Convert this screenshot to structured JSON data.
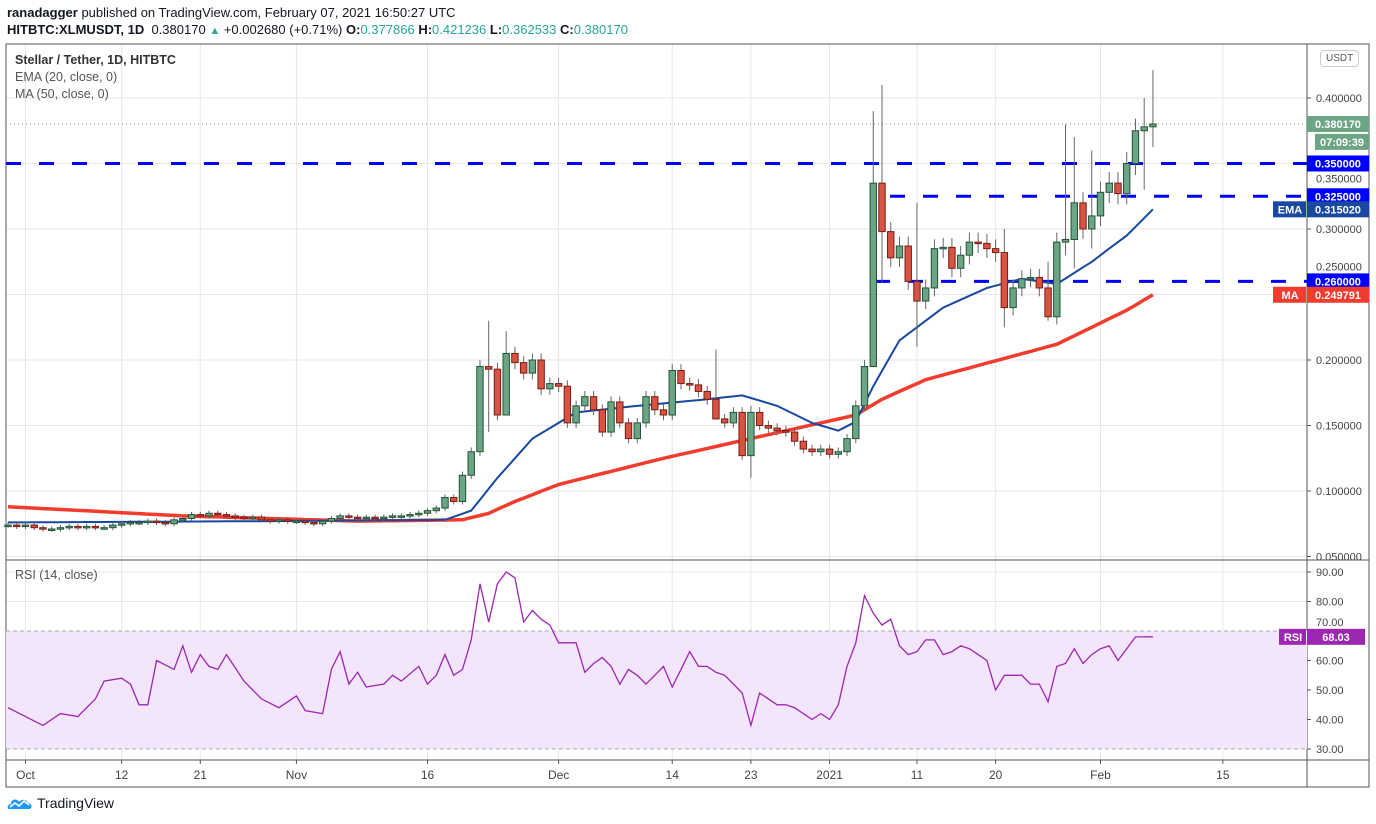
{
  "header": {
    "author": "ranadagger",
    "published_text": "published on TradingView.com, February 07, 2021 16:50:27 UTC",
    "symbol": "HITBTC:XLMUSDT, 1D",
    "last": "0.380170",
    "change": "+0.002680 (+0.71%)",
    "o_label": "O:",
    "o": "0.377866",
    "h_label": "H:",
    "h": "0.421236",
    "l_label": "L:",
    "l": "0.362533",
    "c_label": "C:",
    "c": "0.380170"
  },
  "legend": {
    "title": "Stellar / Tether, 1D, HITBTC",
    "ema": "EMA (20, close, 0)",
    "ma": "MA (50, close, 0)",
    "rsi": "RSI (14, close)"
  },
  "currency_button": "USDT",
  "footer": {
    "brand": "TradingView"
  },
  "colors": {
    "up": "#6ba583",
    "down": "#d75442",
    "ema": "#1848a0",
    "ma": "#f23c2e",
    "rsi": "#9c27b0",
    "levels": "#0000ff",
    "rsi_band": "#f3e5fc"
  },
  "chart_data": {
    "type": "candlestick",
    "start_date": "2020-09-29",
    "close": [
      0.074,
      0.073,
      0.074,
      0.072,
      0.071,
      0.071,
      0.072,
      0.073,
      0.072,
      0.073,
      0.072,
      0.072,
      0.074,
      0.075,
      0.076,
      0.076,
      0.077,
      0.076,
      0.075,
      0.078,
      0.079,
      0.082,
      0.081,
      0.083,
      0.082,
      0.081,
      0.08,
      0.079,
      0.08,
      0.078,
      0.077,
      0.078,
      0.077,
      0.077,
      0.076,
      0.075,
      0.077,
      0.079,
      0.081,
      0.08,
      0.079,
      0.08,
      0.079,
      0.08,
      0.081,
      0.081,
      0.082,
      0.083,
      0.085,
      0.087,
      0.095,
      0.092,
      0.112,
      0.13,
      0.195,
      0.193,
      0.158,
      0.205,
      0.198,
      0.19,
      0.2,
      0.178,
      0.182,
      0.18,
      0.152,
      0.165,
      0.172,
      0.162,
      0.145,
      0.168,
      0.152,
      0.14,
      0.152,
      0.172,
      0.162,
      0.158,
      0.192,
      0.182,
      0.181,
      0.176,
      0.17,
      0.155,
      0.152,
      0.16,
      0.127,
      0.16,
      0.15,
      0.148,
      0.146,
      0.145,
      0.138,
      0.132,
      0.13,
      0.132,
      0.128,
      0.13,
      0.14,
      0.165,
      0.195,
      0.335,
      0.298,
      0.278,
      0.287,
      0.26,
      0.245,
      0.255,
      0.285,
      0.286,
      0.27,
      0.28,
      0.29,
      0.289,
      0.285,
      0.282,
      0.24,
      0.255,
      0.262,
      0.263,
      0.255,
      0.233,
      0.29,
      0.292,
      0.32,
      0.3,
      0.31,
      0.328,
      0.335,
      0.327,
      0.35,
      0.375,
      0.378,
      0.38017
    ],
    "wicks": [
      [
        55,
        0.23,
        0.145
      ],
      [
        57,
        0.222,
        0.172
      ],
      [
        81,
        0.208,
        0.16
      ],
      [
        85,
        0.165,
        0.11
      ],
      [
        99,
        0.39,
        0.196
      ],
      [
        100,
        0.41,
        0.26
      ],
      [
        104,
        0.32,
        0.21
      ],
      [
        114,
        0.3,
        0.225
      ],
      [
        119,
        0.275,
        0.23
      ],
      [
        121,
        0.38,
        0.28
      ],
      [
        122,
        0.37,
        0.27
      ],
      [
        124,
        0.36,
        0.285
      ],
      [
        130,
        0.4,
        0.33
      ],
      [
        131,
        0.421236,
        0.362533
      ]
    ],
    "ema20": [
      [
        0,
        0.076
      ],
      [
        30,
        0.077
      ],
      [
        50,
        0.078
      ],
      [
        53,
        0.085
      ],
      [
        56,
        0.11
      ],
      [
        60,
        0.14
      ],
      [
        65,
        0.16
      ],
      [
        72,
        0.165
      ],
      [
        80,
        0.17
      ],
      [
        84,
        0.173
      ],
      [
        88,
        0.165
      ],
      [
        92,
        0.152
      ],
      [
        95,
        0.146
      ],
      [
        97,
        0.153
      ],
      [
        99,
        0.18
      ],
      [
        102,
        0.215
      ],
      [
        107,
        0.24
      ],
      [
        112,
        0.255
      ],
      [
        116,
        0.262
      ],
      [
        120,
        0.258
      ],
      [
        124,
        0.275
      ],
      [
        128,
        0.295
      ],
      [
        131,
        0.31502
      ]
    ],
    "ma50": [
      [
        0,
        0.088
      ],
      [
        20,
        0.081
      ],
      [
        40,
        0.077
      ],
      [
        52,
        0.078
      ],
      [
        55,
        0.083
      ],
      [
        58,
        0.092
      ],
      [
        63,
        0.105
      ],
      [
        75,
        0.125
      ],
      [
        85,
        0.14
      ],
      [
        93,
        0.152
      ],
      [
        97,
        0.158
      ],
      [
        100,
        0.17
      ],
      [
        105,
        0.185
      ],
      [
        115,
        0.203
      ],
      [
        120,
        0.212
      ],
      [
        124,
        0.225
      ],
      [
        128,
        0.238
      ],
      [
        131,
        0.249791
      ]
    ],
    "rsi": [
      [
        0,
        44
      ],
      [
        4,
        38
      ],
      [
        6,
        42
      ],
      [
        8,
        41
      ],
      [
        10,
        47
      ],
      [
        11,
        53
      ],
      [
        13,
        54
      ],
      [
        14,
        52
      ],
      [
        15,
        45
      ],
      [
        16,
        45
      ],
      [
        17,
        60
      ],
      [
        19,
        57
      ],
      [
        20,
        65
      ],
      [
        21,
        56
      ],
      [
        22,
        62
      ],
      [
        23,
        58
      ],
      [
        24,
        57
      ],
      [
        25,
        62
      ],
      [
        27,
        53
      ],
      [
        29,
        47
      ],
      [
        31,
        44
      ],
      [
        33,
        48
      ],
      [
        34,
        43
      ],
      [
        36,
        42
      ],
      [
        37,
        57
      ],
      [
        38,
        63
      ],
      [
        39,
        52
      ],
      [
        40,
        56
      ],
      [
        41,
        51
      ],
      [
        43,
        52
      ],
      [
        44,
        55
      ],
      [
        45,
        53
      ],
      [
        47,
        58
      ],
      [
        48,
        52
      ],
      [
        49,
        55
      ],
      [
        50,
        62
      ],
      [
        51,
        55
      ],
      [
        52,
        57
      ],
      [
        53,
        67
      ],
      [
        54,
        86
      ],
      [
        55,
        73
      ],
      [
        56,
        86
      ],
      [
        57,
        90
      ],
      [
        58,
        88
      ],
      [
        59,
        73
      ],
      [
        60,
        77
      ],
      [
        61,
        74
      ],
      [
        62,
        72
      ],
      [
        63,
        66
      ],
      [
        64,
        66
      ],
      [
        65,
        66
      ],
      [
        66,
        56
      ],
      [
        67,
        59
      ],
      [
        68,
        61
      ],
      [
        69,
        58
      ],
      [
        70,
        52
      ],
      [
        71,
        57
      ],
      [
        72,
        55
      ],
      [
        73,
        52
      ],
      [
        74,
        55
      ],
      [
        75,
        58
      ],
      [
        76,
        51
      ],
      [
        77,
        57
      ],
      [
        78,
        63
      ],
      [
        79,
        58
      ],
      [
        80,
        58
      ],
      [
        81,
        56
      ],
      [
        82,
        55
      ],
      [
        83,
        52
      ],
      [
        84,
        49
      ],
      [
        85,
        38
      ],
      [
        86,
        49
      ],
      [
        87,
        47
      ],
      [
        88,
        45
      ],
      [
        89,
        45
      ],
      [
        90,
        44
      ],
      [
        91,
        42
      ],
      [
        92,
        40
      ],
      [
        93,
        42
      ],
      [
        94,
        40
      ],
      [
        95,
        45
      ],
      [
        96,
        58
      ],
      [
        97,
        66
      ],
      [
        98,
        82
      ],
      [
        99,
        76
      ],
      [
        100,
        72
      ],
      [
        101,
        74
      ],
      [
        102,
        65
      ],
      [
        103,
        62
      ],
      [
        104,
        63
      ],
      [
        105,
        67
      ],
      [
        106,
        67
      ],
      [
        107,
        62
      ],
      [
        108,
        63
      ],
      [
        109,
        65
      ],
      [
        110,
        64
      ],
      [
        111,
        62
      ],
      [
        112,
        60
      ],
      [
        113,
        50
      ],
      [
        114,
        55
      ],
      [
        115,
        55
      ],
      [
        116,
        55
      ],
      [
        117,
        52
      ],
      [
        118,
        52
      ],
      [
        119,
        46
      ],
      [
        120,
        58
      ],
      [
        121,
        59
      ],
      [
        122,
        64
      ],
      [
        123,
        59
      ],
      [
        124,
        62
      ],
      [
        125,
        64
      ],
      [
        126,
        65
      ],
      [
        127,
        60
      ],
      [
        128,
        64
      ],
      [
        129,
        68
      ],
      [
        130,
        68
      ],
      [
        131,
        68.03
      ]
    ],
    "levels": [
      0.35,
      0.325,
      0.26
    ],
    "y_ticks": [
      "0.400000",
      "0.350000",
      "0.300000",
      "0.250000",
      "0.200000",
      "0.150000",
      "0.100000",
      "0.050000"
    ],
    "y_tick_values": [
      0.4,
      0.35,
      0.3,
      0.25,
      0.2,
      0.15,
      0.1,
      0.05
    ],
    "ylim": [
      0.043,
      0.441
    ],
    "rsi_ticks": [
      "90.00",
      "80.00",
      "70.00",
      "60.00",
      "50.00",
      "40.00",
      "30.00"
    ],
    "rsi_tick_values": [
      90,
      80,
      70,
      60,
      50,
      40,
      30
    ],
    "rsi_band": [
      30,
      70
    ],
    "x_ticks": [
      {
        "label": "Oct",
        "day": 2
      },
      {
        "label": "12",
        "day": 13
      },
      {
        "label": "21",
        "day": 22
      },
      {
        "label": "Nov",
        "day": 33
      },
      {
        "label": "16",
        "day": 48
      },
      {
        "label": "Dec",
        "day": 63
      },
      {
        "label": "14",
        "day": 76
      },
      {
        "label": "23",
        "day": 85
      },
      {
        "label": "2021",
        "day": 94
      },
      {
        "label": "11",
        "day": 104
      },
      {
        "label": "20",
        "day": 113
      },
      {
        "label": "Feb",
        "day": 125
      },
      {
        "label": "15",
        "day": 139
      }
    ],
    "price_labels": [
      {
        "text": "0.380170",
        "value": 0.38017,
        "color": "#6ba583"
      },
      {
        "text": "07:09:39",
        "value": 0.3665,
        "color": "#6ba583"
      },
      {
        "text": "0.350000",
        "value": 0.35,
        "color": "#0000ff"
      },
      {
        "text": "0.325000",
        "value": 0.325,
        "color": "#0000ff"
      },
      {
        "text": "0.315020",
        "value": 0.31502,
        "color": "#1848a0",
        "tag": "EMA"
      },
      {
        "text": "0.260000",
        "value": 0.26,
        "color": "#0000ff"
      },
      {
        "text": "0.249791",
        "value": 0.249791,
        "color": "#f23c2e",
        "tag": "MA"
      }
    ],
    "rsi_label": {
      "tag": "RSI",
      "text": "68.03",
      "value": 68.03
    }
  }
}
